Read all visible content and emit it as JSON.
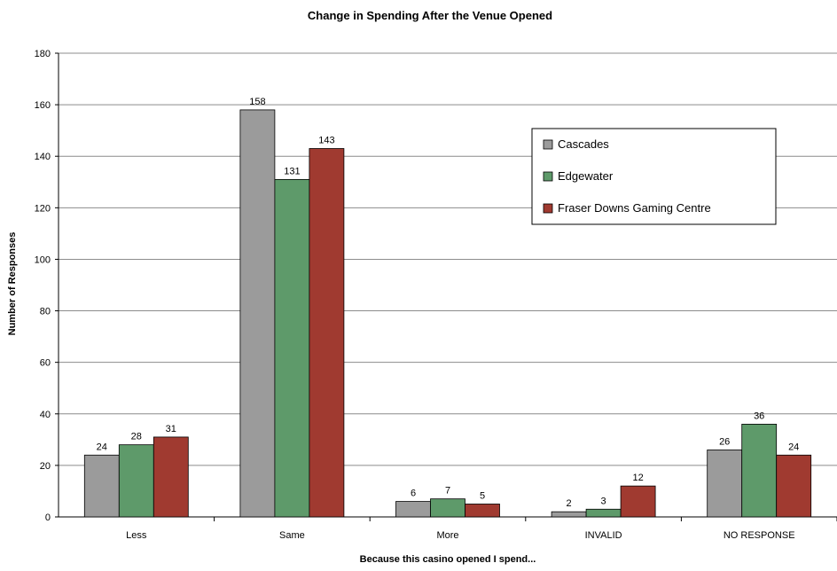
{
  "chart_data": {
    "type": "bar",
    "title": "Change in Spending After the Venue Opened",
    "xlabel": "Because this casino opened I spend...",
    "ylabel": "Number of Responses",
    "ylim": [
      0,
      180
    ],
    "yticks": [
      0,
      20,
      40,
      60,
      80,
      100,
      120,
      140,
      160,
      180
    ],
    "grid": true,
    "legend_position": "top-right",
    "categories": [
      "Less",
      "Same",
      "More",
      "INVALID",
      "NO RESPONSE"
    ],
    "series": [
      {
        "name": "Cascades",
        "color": "#9b9b9b",
        "values": [
          24,
          158,
          6,
          2,
          26
        ]
      },
      {
        "name": "Edgewater",
        "color": "#5e9a6a",
        "values": [
          28,
          131,
          7,
          3,
          36
        ]
      },
      {
        "name": "Fraser Downs Gaming Centre",
        "color": "#a03a30",
        "values": [
          31,
          143,
          5,
          12,
          24
        ]
      }
    ]
  }
}
